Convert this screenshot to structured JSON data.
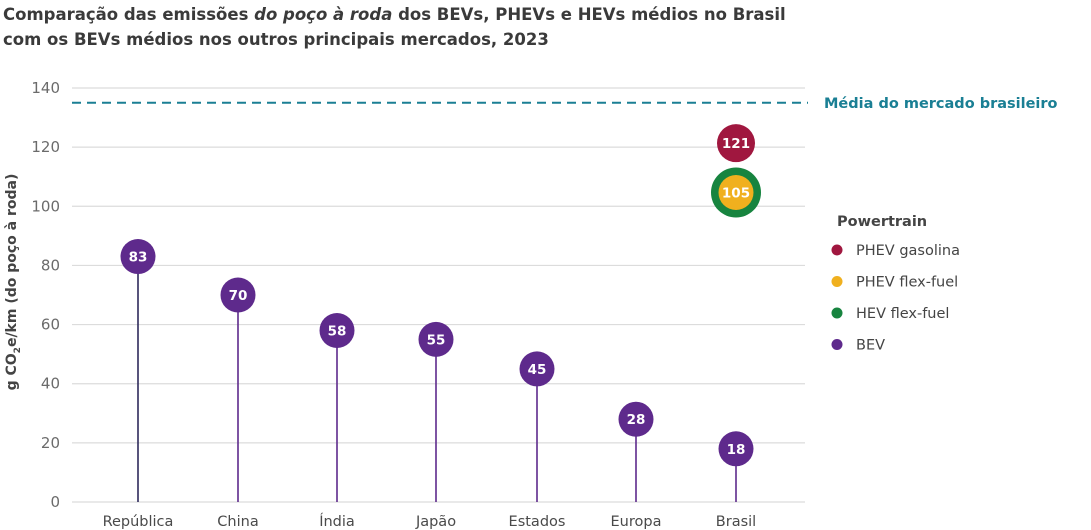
{
  "title": {
    "part1": "Comparação das emissões ",
    "italic": "do poço à roda",
    "part2": " dos BEVs, PHEVs e HEVs médios no Brasil",
    "line2": "com os BEVs médios nos outros principais mercados, 2023"
  },
  "chart_data": {
    "type": "lollipop",
    "title": "Comparação das emissões do poço à roda dos BEVs, PHEVs e HEVs médios no Brasil com os BEVs médios nos outros principais mercados, 2023",
    "xlabel": "",
    "ylabel": "g CO2e/km (do poço à roda)",
    "ylabel_parts": [
      "g CO",
      "2",
      "e/km (do poço à roda)"
    ],
    "ylim": [
      0,
      140
    ],
    "yticks": [
      0,
      20,
      40,
      60,
      80,
      100,
      120,
      140
    ],
    "grid": true,
    "categories": [
      "República",
      "China",
      "Índia",
      "Japão",
      "Estados",
      "Europa",
      "Brasil"
    ],
    "series": [
      {
        "name": "BEV",
        "color": "#5e2a8c",
        "values": [
          83,
          70,
          58,
          55,
          45,
          28,
          18
        ]
      },
      {
        "name": "PHEV gasolina",
        "color": "#a0173f",
        "points": [
          {
            "category": "Brasil",
            "value": 121
          }
        ]
      },
      {
        "name": "PHEV flex-fuel",
        "color": "#f0b01e",
        "points": [
          {
            "category": "Brasil",
            "value": 105
          }
        ]
      },
      {
        "name": "HEV flex-fuel",
        "color": "#17843f",
        "points": [
          {
            "category": "Brasil",
            "value": 105
          }
        ]
      }
    ],
    "reference_line": {
      "label": "Média do mercado brasileiro",
      "value": 135,
      "color": "#1a7f94",
      "style": "dashed"
    },
    "legend": {
      "title": "Powertrain",
      "position": "right",
      "items": [
        {
          "label": "PHEV gasolina",
          "color": "#a0173f"
        },
        {
          "label": "PHEV flex-fuel",
          "color": "#f0b01e"
        },
        {
          "label": "HEV flex-fuel",
          "color": "#17843f"
        },
        {
          "label": "BEV",
          "color": "#5e2a8c"
        }
      ]
    }
  }
}
